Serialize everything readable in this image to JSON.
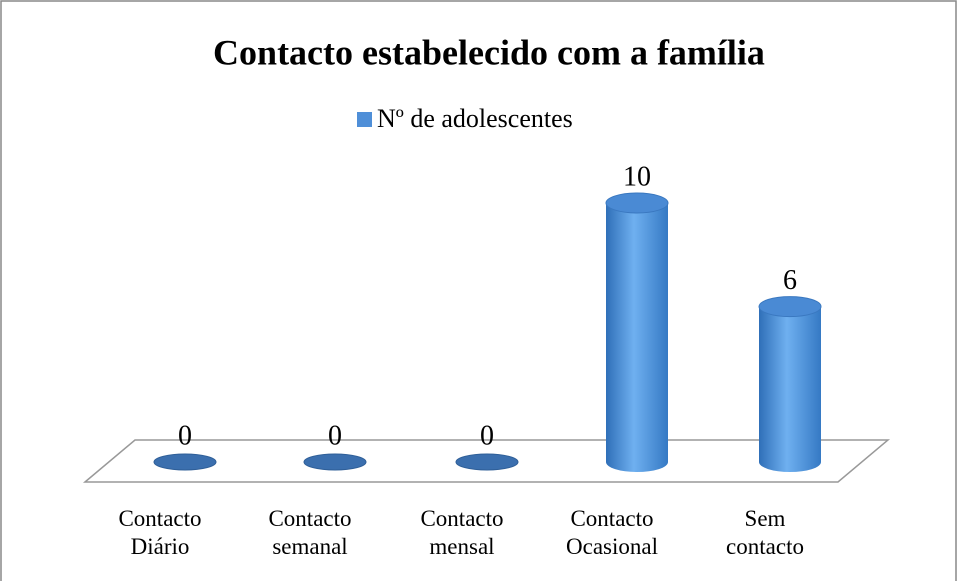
{
  "chart_data": {
    "type": "bar3d",
    "title": "Contacto estabelecido com a família",
    "categories": [
      "Contacto Diário",
      "Contacto semanal",
      "Contacto mensal",
      "Contacto Ocasional",
      "Sem contacto"
    ],
    "series": [
      {
        "name": "Nº de adolescentes",
        "color": "#4f8fd8",
        "values": [
          0,
          0,
          0,
          10,
          6
        ]
      }
    ]
  }
}
